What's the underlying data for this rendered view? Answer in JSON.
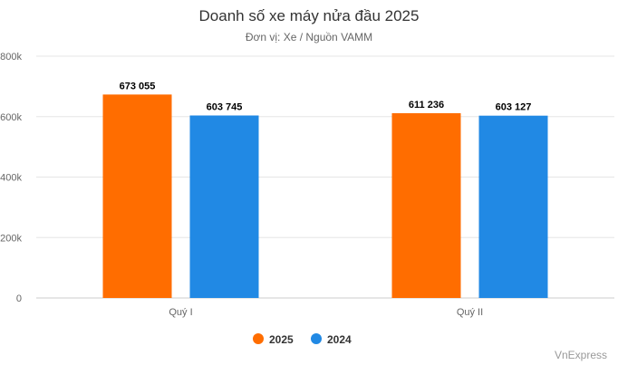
{
  "chart_data": {
    "type": "bar",
    "title": "Doanh số xe máy nửa đầu 2025",
    "subtitle": "Đơn vị: Xe / Nguồn VAMM",
    "categories": [
      "Quý I",
      "Quý II"
    ],
    "series": [
      {
        "name": "2025",
        "color": "#ff6d00",
        "values": [
          673055,
          611236
        ],
        "labels": [
          "673 055",
          "611 236"
        ]
      },
      {
        "name": "2024",
        "color": "#2189e4",
        "values": [
          603745,
          603127
        ],
        "labels": [
          "603 745",
          "603 127"
        ]
      }
    ],
    "ylim": [
      0,
      800000
    ],
    "yticks": [
      0,
      200000,
      400000,
      600000,
      800000
    ],
    "ytick_labels": [
      "0",
      "200k",
      "400k",
      "600k",
      "800k"
    ],
    "grid": true,
    "legend": "bottom-center",
    "credit": "VnExpress"
  }
}
